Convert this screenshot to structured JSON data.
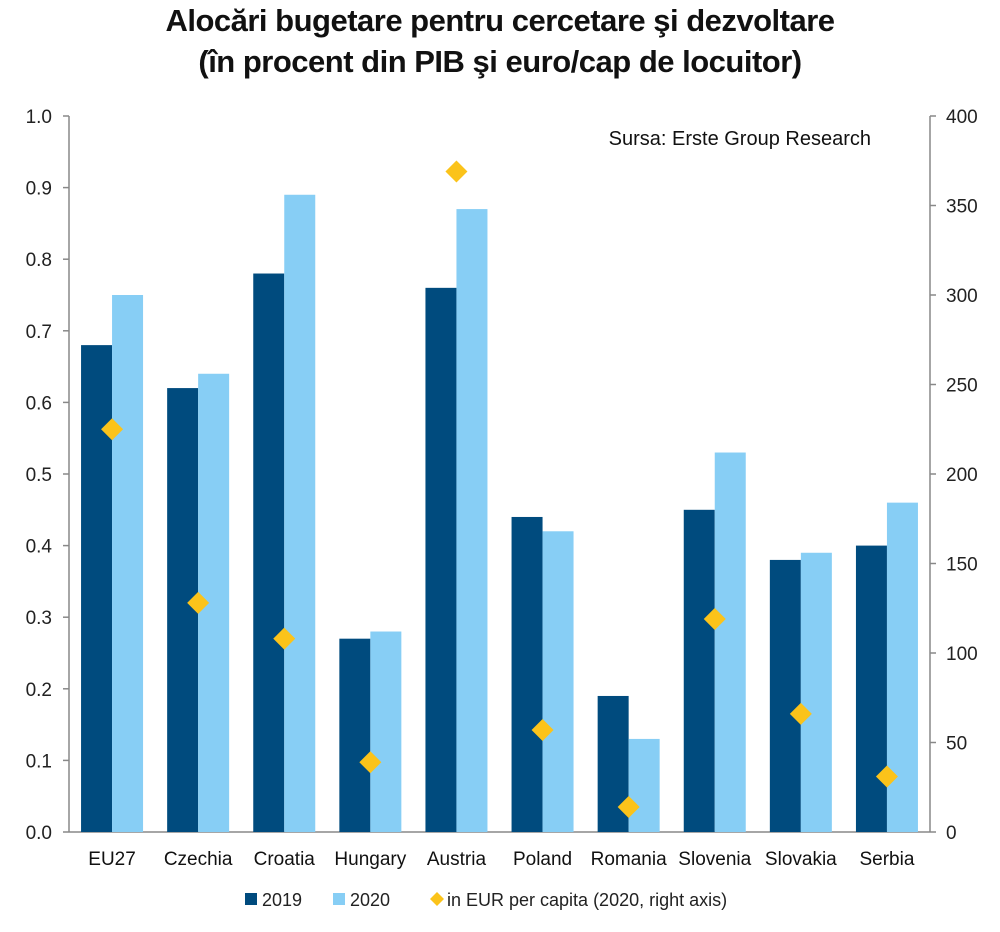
{
  "chart_data": {
    "type": "bar",
    "title_line1": "Alocări bugetare pentru cercetare şi dezvoltare",
    "title_line2": "(în procent din PIB şi euro/cap de locuitor)",
    "source": "Sursa: Erste Group Research",
    "categories": [
      "EU27",
      "Czechia",
      "Croatia",
      "Hungary",
      "Austria",
      "Poland",
      "Romania",
      "Slovenia",
      "Slovakia",
      "Serbia"
    ],
    "series": [
      {
        "name": "2019",
        "color": "#004b7e",
        "axis": "left",
        "values": [
          0.68,
          0.62,
          0.78,
          0.27,
          0.76,
          0.44,
          0.19,
          0.45,
          0.38,
          0.4
        ]
      },
      {
        "name": "2020",
        "color": "#87cef5",
        "axis": "left",
        "values": [
          0.75,
          0.64,
          0.89,
          0.28,
          0.87,
          0.42,
          0.13,
          0.53,
          0.39,
          0.46
        ]
      },
      {
        "name": "in EUR per capita (2020, right axis)",
        "color": "#fbc31a",
        "axis": "right",
        "marker": "diamond",
        "values": [
          225,
          128,
          108,
          39,
          369,
          57,
          14,
          119,
          66,
          31
        ]
      }
    ],
    "left_axis": {
      "ylim": [
        0,
        1.0
      ],
      "ticks": [
        "0.0",
        "0.1",
        "0.2",
        "0.3",
        "0.4",
        "0.5",
        "0.6",
        "0.7",
        "0.8",
        "0.9",
        "1.0"
      ]
    },
    "right_axis": {
      "ylim": [
        0,
        400
      ],
      "ticks": [
        "0",
        "50",
        "100",
        "150",
        "200",
        "250",
        "300",
        "350",
        "400"
      ]
    },
    "legend_position": "bottom",
    "grid": false
  }
}
